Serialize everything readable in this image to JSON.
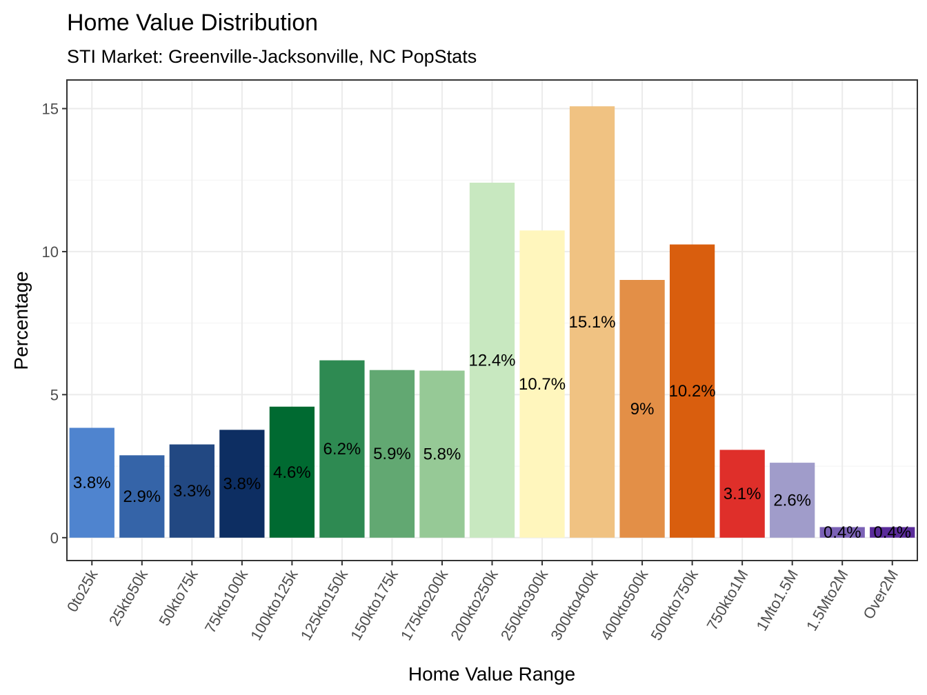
{
  "chart_data": {
    "type": "bar",
    "title": "Home Value Distribution",
    "subtitle": "STI Market: Greenville-Jacksonville, NC PopStats",
    "xlabel": "Home Value Range",
    "ylabel": "Percentage",
    "ylim": [
      -0.8,
      16
    ],
    "yticks": [
      0,
      5,
      10,
      15
    ],
    "grid": true,
    "legend": "none",
    "categories": [
      "0to25k",
      "25kto50k",
      "50kto75k",
      "75kto100k",
      "100kto125k",
      "125kto150k",
      "150kto175k",
      "175kto200k",
      "200kto250k",
      "250kto300k",
      "300kto400k",
      "400kto500k",
      "500kto750k",
      "750kto1M",
      "1Mto1.5M",
      "1.5Mto2M",
      "Over2M"
    ],
    "values": [
      3.84,
      2.88,
      3.26,
      3.77,
      4.58,
      6.2,
      5.86,
      5.84,
      12.41,
      10.74,
      15.08,
      9.01,
      10.25,
      3.07,
      2.62,
      0.37,
      0.37
    ],
    "labels": [
      "3.8%",
      "2.9%",
      "3.3%",
      "3.8%",
      "4.6%",
      "6.2%",
      "5.9%",
      "5.8%",
      "12.4%",
      "10.7%",
      "15.1%",
      "9%",
      "10.2%",
      "3.1%",
      "2.6%",
      "0.4%",
      "0.4%"
    ],
    "colors": [
      "#4f84cf",
      "#3564a8",
      "#224882",
      "#0d2e62",
      "#006a31",
      "#2e8a52",
      "#62a872",
      "#96c996",
      "#c8e8c0",
      "#fff6bd",
      "#f0c282",
      "#e38f47",
      "#d95e0e",
      "#df2f2a",
      "#a09cca",
      "#7b62b6",
      "#5a2c9a"
    ]
  }
}
